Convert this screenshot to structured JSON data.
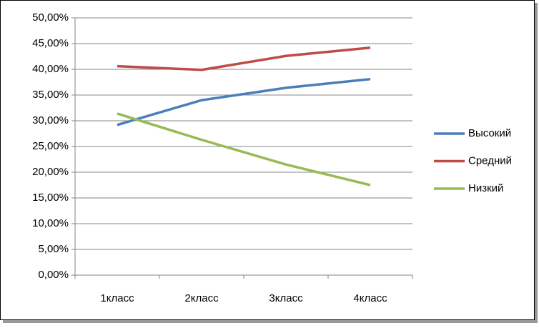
{
  "chart_data": {
    "type": "line",
    "categories": [
      "1класс",
      "2класс",
      "3класс",
      "4класс"
    ],
    "series": [
      {
        "name": "Высокий",
        "color": "#4a7ebb",
        "values": [
          29.2,
          34.0,
          36.4,
          38.1
        ]
      },
      {
        "name": "Средний",
        "color": "#be4b48",
        "values": [
          40.6,
          39.9,
          42.6,
          44.2
        ]
      },
      {
        "name": "Низкий",
        "color": "#98b954",
        "values": [
          31.4,
          26.3,
          21.5,
          17.5
        ]
      }
    ],
    "ylim": [
      0,
      50
    ],
    "yticks": [
      {
        "value": 0,
        "label": "0,00%"
      },
      {
        "value": 5,
        "label": "5,00%"
      },
      {
        "value": 10,
        "label": "10,00%"
      },
      {
        "value": 15,
        "label": "15,00%"
      },
      {
        "value": 20,
        "label": "20,00%"
      },
      {
        "value": 25,
        "label": "25,00%"
      },
      {
        "value": 30,
        "label": "30,00%"
      },
      {
        "value": 35,
        "label": "35,00%"
      },
      {
        "value": 40,
        "label": "40,00%"
      },
      {
        "value": 45,
        "label": "45,00%"
      },
      {
        "value": 50,
        "label": "50,00%"
      }
    ],
    "grid": true,
    "legend": "right"
  }
}
